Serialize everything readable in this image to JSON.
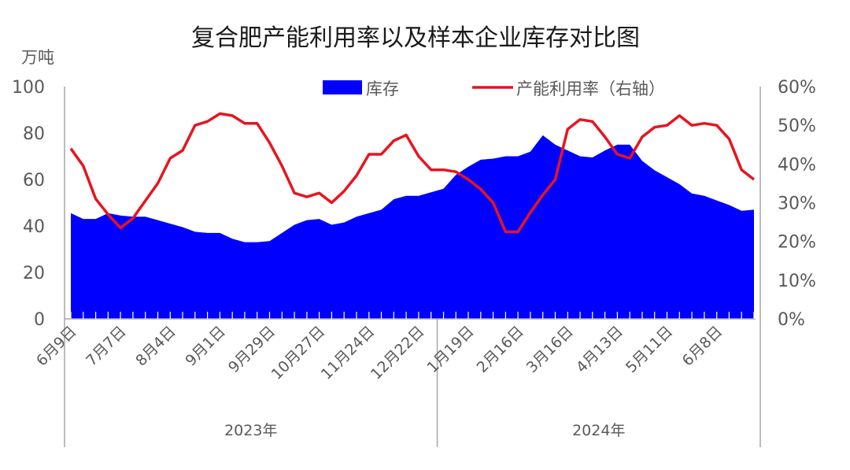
{
  "chart_data": {
    "type": "area+line",
    "title": "复合肥产能利用率以及样本企业库存对比图",
    "y_left": {
      "unit": "万吨",
      "min": 0,
      "max": 100,
      "ticks": [
        "0",
        "20",
        "40",
        "60",
        "80",
        "100"
      ]
    },
    "y_right": {
      "min": 0,
      "max": 60,
      "ticks": [
        "0%",
        "10%",
        "20%",
        "30%",
        "40%",
        "50%",
        "60%"
      ]
    },
    "x_tick_labels": [
      "6月9日",
      "7月7日",
      "8月4日",
      "9月1日",
      "9月29日",
      "10月27日",
      "11月24日",
      "12月22日",
      "1月19日",
      "2月16日",
      "3月16日",
      "4月13日",
      "5月11日",
      "6月8日"
    ],
    "x_tick_week_index": [
      0,
      4,
      8,
      12,
      16,
      20,
      24,
      28,
      32,
      36,
      40,
      44,
      48,
      52
    ],
    "years": [
      "2023年",
      "2024年"
    ],
    "year_start_week_index": [
      0,
      30
    ],
    "series": [
      {
        "name": "库存",
        "type": "area",
        "axis": "left",
        "color": "#0000ff",
        "values": [
          45.5,
          43,
          43,
          45.5,
          44.5,
          44,
          44,
          42.5,
          41,
          39.5,
          37.5,
          37,
          37,
          34.5,
          33,
          33,
          33.5,
          37,
          40.5,
          42.5,
          43,
          40.5,
          41.5,
          44,
          45.5,
          47,
          51.5,
          53,
          53,
          54.5,
          56,
          62,
          65.5,
          68.5,
          69,
          70,
          70,
          72,
          79,
          75,
          72.5,
          70,
          69.5,
          72.5,
          75,
          75,
          68,
          64,
          61,
          58,
          54,
          53,
          51,
          49,
          46.5,
          47
        ]
      },
      {
        "name": "产能利用率（右轴）",
        "type": "line",
        "axis": "right",
        "color": "#e8141e",
        "values": [
          44,
          39.5,
          31,
          27,
          23.5,
          26,
          30.5,
          35,
          41.5,
          43.5,
          50,
          51,
          53,
          52.5,
          50.5,
          50.5,
          45.5,
          39.5,
          32.5,
          31.5,
          32.5,
          30,
          33,
          37,
          42.5,
          42.5,
          46,
          47.5,
          42,
          38.5,
          38.5,
          38,
          36,
          33.5,
          30,
          22.5,
          22.5,
          27.5,
          32,
          36,
          49,
          51.5,
          51,
          47,
          42.5,
          41.5,
          47,
          49.5,
          50,
          52.5,
          50,
          50.5,
          50,
          46.5,
          38.5,
          36
        ]
      }
    ]
  }
}
